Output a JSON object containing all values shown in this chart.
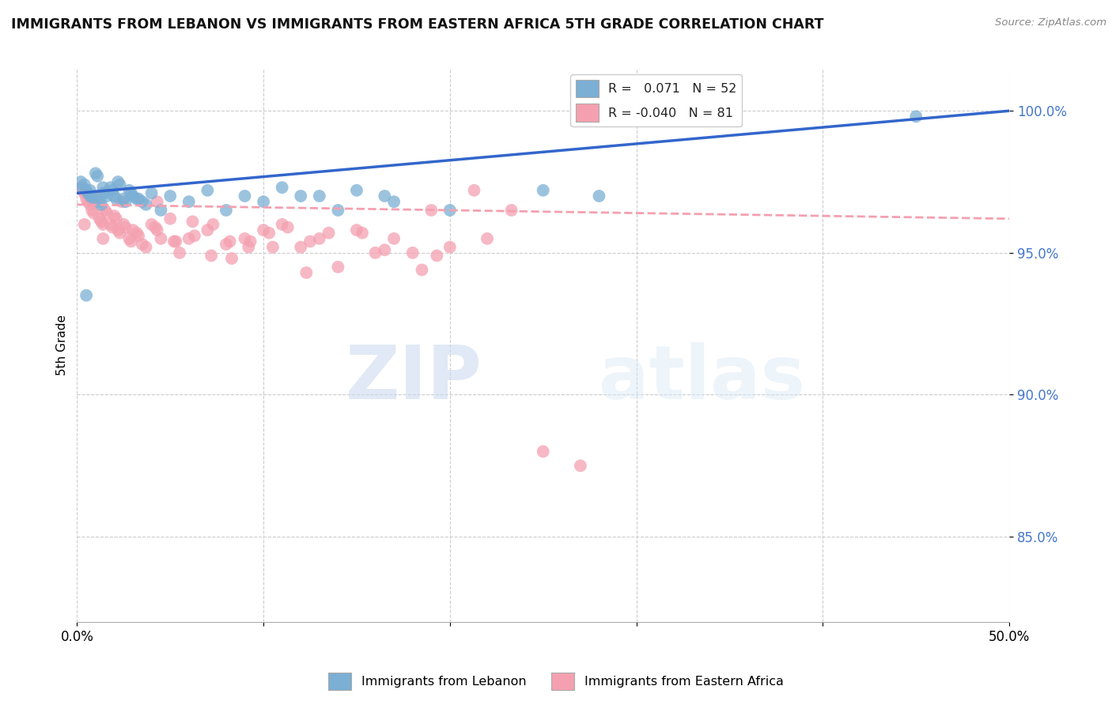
{
  "title": "IMMIGRANTS FROM LEBANON VS IMMIGRANTS FROM EASTERN AFRICA 5TH GRADE CORRELATION CHART",
  "source": "Source: ZipAtlas.com",
  "ylabel": "5th Grade",
  "xlim": [
    0.0,
    50.0
  ],
  "ylim": [
    82.0,
    101.5
  ],
  "yticks": [
    85.0,
    90.0,
    95.0,
    100.0
  ],
  "legend_v1": "0.071",
  "legend_n1": "N = 52",
  "legend_n2": "N = 81",
  "blue_color": "#7BAFD4",
  "pink_color": "#F4A0B0",
  "trend_blue": "#3366CC",
  "trend_pink": "#F4A0B0",
  "bottom_legend_1": "Immigrants from Lebanon",
  "bottom_legend_2": "Immigrants from Eastern Africa",
  "watermark_zip": "ZIP",
  "watermark_atlas": "atlas",
  "blue_scatter_x": [
    0.2,
    0.3,
    0.4,
    0.5,
    0.6,
    0.7,
    0.7,
    0.8,
    0.9,
    1.0,
    1.1,
    1.2,
    1.3,
    1.4,
    1.4,
    1.5,
    1.6,
    1.8,
    1.9,
    2.0,
    2.1,
    2.2,
    2.3,
    2.5,
    2.6,
    2.8,
    2.9,
    3.0,
    3.2,
    3.3,
    3.5,
    3.7,
    4.0,
    4.5,
    5.0,
    6.0,
    7.0,
    8.0,
    9.0,
    10.0,
    11.0,
    12.0,
    13.0,
    14.0,
    15.0,
    16.5,
    17.0,
    20.0,
    25.0,
    28.0,
    45.0,
    0.5
  ],
  "blue_scatter_y": [
    97.5,
    97.3,
    97.4,
    97.2,
    97.1,
    97.2,
    97.0,
    97.0,
    96.9,
    97.8,
    97.7,
    96.8,
    96.7,
    97.3,
    97.1,
    97.1,
    97.0,
    97.3,
    97.2,
    97.0,
    96.9,
    97.5,
    97.4,
    96.9,
    96.8,
    97.2,
    97.1,
    97.0,
    96.9,
    96.9,
    96.8,
    96.7,
    97.1,
    96.5,
    97.0,
    96.8,
    97.2,
    96.5,
    97.0,
    96.8,
    97.3,
    97.0,
    97.0,
    96.5,
    97.2,
    97.0,
    96.8,
    96.5,
    97.2,
    97.0,
    99.8,
    93.5
  ],
  "pink_scatter_x": [
    0.2,
    0.3,
    0.4,
    0.5,
    0.6,
    0.7,
    0.8,
    0.9,
    1.0,
    1.1,
    1.2,
    1.3,
    1.4,
    1.5,
    1.6,
    1.8,
    1.9,
    2.0,
    2.1,
    2.2,
    2.3,
    2.5,
    2.6,
    2.8,
    2.9,
    3.0,
    3.2,
    3.3,
    3.5,
    3.7,
    4.0,
    4.2,
    4.3,
    4.5,
    5.0,
    5.2,
    5.3,
    5.5,
    6.0,
    6.2,
    6.3,
    7.0,
    7.2,
    7.3,
    8.0,
    8.2,
    8.3,
    9.0,
    9.2,
    9.3,
    10.0,
    10.3,
    10.5,
    11.0,
    11.3,
    12.0,
    12.3,
    12.5,
    13.0,
    13.5,
    14.0,
    15.0,
    15.3,
    16.0,
    16.5,
    17.0,
    18.0,
    18.5,
    19.3,
    20.0,
    21.3,
    22.0,
    23.3,
    25.0,
    27.0,
    4.3,
    19.0,
    0.4,
    0.8,
    1.4,
    2.4
  ],
  "pink_scatter_y": [
    97.3,
    97.2,
    97.1,
    96.9,
    96.8,
    96.7,
    96.5,
    96.4,
    97.0,
    96.9,
    96.2,
    96.1,
    96.0,
    96.5,
    96.4,
    96.0,
    95.9,
    96.3,
    96.2,
    95.8,
    95.7,
    96.0,
    95.9,
    95.5,
    95.4,
    95.8,
    95.7,
    95.6,
    95.3,
    95.2,
    96.0,
    95.9,
    95.8,
    95.5,
    96.2,
    95.4,
    95.4,
    95.0,
    95.5,
    96.1,
    95.6,
    95.8,
    94.9,
    96.0,
    95.3,
    95.4,
    94.8,
    95.5,
    95.2,
    95.4,
    95.8,
    95.7,
    95.2,
    96.0,
    95.9,
    95.2,
    94.3,
    95.4,
    95.5,
    95.7,
    94.5,
    95.8,
    95.7,
    95.0,
    95.1,
    95.5,
    95.0,
    94.4,
    94.9,
    95.2,
    97.2,
    95.5,
    96.5,
    88.0,
    87.5,
    96.8,
    96.5,
    96.0,
    96.8,
    95.5,
    96.8
  ],
  "blue_trend_x": [
    0.0,
    50.0
  ],
  "blue_trend_y": [
    97.1,
    100.0
  ],
  "pink_trend_x": [
    0.0,
    50.0
  ],
  "pink_trend_y": [
    96.7,
    96.2
  ]
}
